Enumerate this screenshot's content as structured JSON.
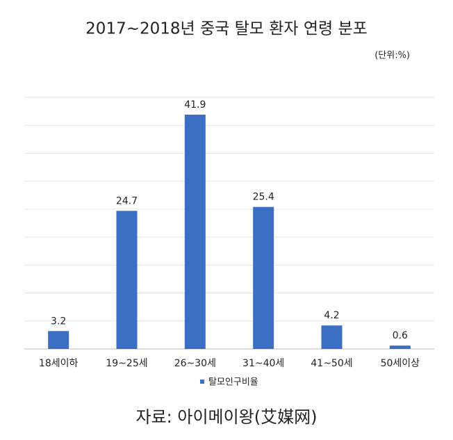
{
  "chart_data": {
    "type": "bar",
    "title": "2017~2018년 중국 탈모 환자 연령 분포",
    "unit": "(단위:%)",
    "categories": [
      "18세이하",
      "19~25세",
      "26~30세",
      "31~40세",
      "41~50세",
      "50세이상"
    ],
    "series": [
      {
        "name": "탈모인구비율",
        "color": "#3a6fc4",
        "values": [
          3.2,
          24.7,
          41.9,
          25.4,
          4.2,
          0.6
        ]
      }
    ],
    "ylim": [
      0,
      45
    ],
    "yticks": [
      0,
      5,
      10,
      15,
      20,
      25,
      30,
      35,
      40,
      45
    ],
    "grid": true,
    "source": "자료: 아이메이왕(艾媒网)"
  }
}
